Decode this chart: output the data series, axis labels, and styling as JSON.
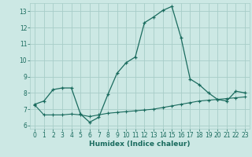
{
  "xlabel": "Humidex (Indice chaleur)",
  "xlim": [
    -0.5,
    23.5
  ],
  "ylim": [
    5.8,
    13.5
  ],
  "yticks": [
    6,
    7,
    8,
    9,
    10,
    11,
    12,
    13
  ],
  "xticks": [
    0,
    1,
    2,
    3,
    4,
    5,
    6,
    7,
    8,
    9,
    10,
    11,
    12,
    13,
    14,
    15,
    16,
    17,
    18,
    19,
    20,
    21,
    22,
    23
  ],
  "background_color": "#cce8e4",
  "grid_color": "#a8cdc8",
  "line_color": "#1a6b5e",
  "line1_x": [
    0,
    1,
    2,
    3,
    4,
    5,
    6,
    7,
    8,
    9,
    10,
    11,
    12,
    13,
    14,
    15,
    16,
    17,
    18,
    19,
    20,
    21,
    22,
    23
  ],
  "line1_y": [
    7.3,
    7.5,
    8.2,
    8.3,
    8.3,
    6.7,
    6.2,
    6.5,
    7.9,
    9.2,
    9.85,
    10.2,
    12.3,
    12.65,
    13.05,
    13.3,
    11.4,
    8.85,
    8.5,
    8.0,
    7.6,
    7.5,
    8.1,
    8.0
  ],
  "line2_x": [
    0,
    1,
    2,
    3,
    4,
    5,
    6,
    7,
    8,
    9,
    10,
    11,
    12,
    13,
    14,
    15,
    16,
    17,
    18,
    19,
    20,
    21,
    22,
    23
  ],
  "line2_y": [
    7.25,
    6.65,
    6.65,
    6.65,
    6.7,
    6.65,
    6.55,
    6.65,
    6.75,
    6.8,
    6.85,
    6.9,
    6.95,
    7.0,
    7.1,
    7.2,
    7.3,
    7.4,
    7.5,
    7.55,
    7.6,
    7.65,
    7.7,
    7.75
  ]
}
